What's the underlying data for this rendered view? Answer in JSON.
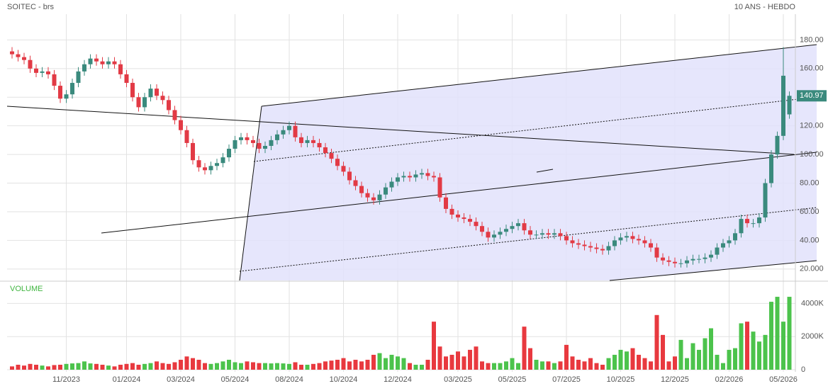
{
  "chart_data": [
    {
      "type": "candlestick",
      "title": "SOITEC - brs",
      "subtitle": "10 ANS - HEBDO",
      "up_color": "#3a8a7d",
      "down_color": "#e23a45",
      "ylim": [
        12,
        198
      ],
      "yticks": [
        {
          "value": 20,
          "label": "20.000"
        },
        {
          "value": 40,
          "label": "40.00"
        },
        {
          "value": 60,
          "label": "60.00"
        },
        {
          "value": 80,
          "label": "80.00"
        },
        {
          "value": 100,
          "label": "100.00"
        },
        {
          "value": 120,
          "label": "120.00"
        },
        {
          "value": 140,
          "label": "140.00"
        },
        {
          "value": 160,
          "label": "160.00"
        },
        {
          "value": 180,
          "label": "180.00"
        }
      ],
      "open": [
        172,
        170,
        168,
        166,
        160,
        157,
        158,
        156,
        148,
        139,
        142,
        150,
        158,
        163,
        167,
        165,
        163,
        165,
        163,
        156,
        150,
        140,
        133,
        140,
        146,
        141,
        138,
        131,
        124,
        117,
        108,
        96,
        91,
        89,
        92,
        94,
        98,
        104,
        110,
        112,
        110,
        108,
        104,
        106,
        110,
        114,
        117,
        120,
        112,
        108,
        110,
        108,
        105,
        101,
        97,
        92,
        88,
        82,
        78,
        73,
        70,
        68,
        72,
        77,
        81,
        84,
        85,
        84,
        86,
        87,
        85,
        84,
        70,
        62,
        58,
        56,
        55,
        53,
        50,
        46,
        42,
        44,
        46,
        48,
        50,
        52,
        47,
        44,
        44,
        45,
        44,
        45,
        43,
        40,
        38,
        37,
        36,
        35,
        34,
        33,
        36,
        40,
        42,
        43,
        41,
        40,
        38,
        35,
        28,
        26,
        25,
        24,
        24,
        26,
        27,
        27,
        28,
        30,
        35,
        38,
        40,
        45,
        55,
        52,
        52,
        56,
        80,
        100,
        113,
        128
      ],
      "high": [
        175,
        173,
        171,
        169,
        163,
        161,
        161,
        159,
        151,
        145,
        153,
        161,
        166,
        170,
        170,
        168,
        168,
        168,
        166,
        159,
        153,
        143,
        143,
        149,
        149,
        144,
        141,
        134,
        127,
        120,
        111,
        99,
        94,
        95,
        97,
        101,
        107,
        113,
        115,
        115,
        113,
        111,
        109,
        113,
        117,
        120,
        123,
        123,
        115,
        113,
        113,
        111,
        108,
        104,
        100,
        95,
        91,
        85,
        81,
        76,
        73,
        75,
        80,
        84,
        87,
        88,
        88,
        89,
        90,
        90,
        88,
        87,
        73,
        65,
        61,
        59,
        58,
        56,
        53,
        49,
        47,
        49,
        51,
        53,
        55,
        55,
        50,
        47,
        48,
        48,
        48,
        48,
        46,
        43,
        41,
        40,
        39,
        38,
        37,
        39,
        43,
        45,
        46,
        46,
        44,
        43,
        41,
        38,
        31,
        29,
        28,
        27,
        29,
        30,
        30,
        31,
        33,
        38,
        41,
        43,
        48,
        58,
        58,
        55,
        59,
        83,
        103,
        116,
        175,
        144
      ],
      "low": [
        167,
        165,
        163,
        157,
        154,
        154,
        153,
        145,
        136,
        136,
        139,
        147,
        155,
        160,
        162,
        160,
        160,
        160,
        153,
        147,
        137,
        130,
        130,
        137,
        138,
        135,
        128,
        121,
        114,
        105,
        93,
        88,
        86,
        86,
        89,
        91,
        95,
        101,
        107,
        107,
        105,
        101,
        101,
        103,
        107,
        111,
        114,
        109,
        105,
        105,
        105,
        102,
        98,
        94,
        89,
        85,
        79,
        75,
        70,
        67,
        65,
        65,
        69,
        74,
        78,
        81,
        81,
        81,
        83,
        82,
        81,
        67,
        59,
        55,
        53,
        52,
        50,
        47,
        43,
        39,
        39,
        41,
        43,
        45,
        47,
        44,
        41,
        41,
        41,
        41,
        41,
        40,
        37,
        35,
        34,
        33,
        32,
        31,
        30,
        30,
        33,
        37,
        39,
        38,
        37,
        35,
        32,
        25,
        23,
        22,
        21,
        21,
        21,
        23,
        24,
        24,
        25,
        27,
        32,
        35,
        37,
        42,
        49,
        49,
        49,
        53,
        77,
        97,
        110,
        125
      ],
      "close": [
        170,
        168,
        166,
        160,
        157,
        158,
        156,
        148,
        139,
        142,
        150,
        158,
        163,
        167,
        165,
        163,
        165,
        163,
        156,
        150,
        140,
        133,
        140,
        146,
        141,
        138,
        131,
        124,
        117,
        108,
        96,
        91,
        89,
        92,
        94,
        98,
        104,
        110,
        112,
        110,
        108,
        104,
        106,
        110,
        114,
        117,
        120,
        112,
        108,
        110,
        108,
        105,
        101,
        97,
        92,
        88,
        82,
        78,
        73,
        70,
        68,
        72,
        77,
        81,
        84,
        85,
        84,
        86,
        87,
        85,
        84,
        70,
        62,
        58,
        56,
        55,
        53,
        50,
        46,
        42,
        44,
        46,
        48,
        50,
        52,
        47,
        44,
        44,
        45,
        44,
        45,
        43,
        40,
        38,
        37,
        36,
        35,
        34,
        33,
        36,
        40,
        42,
        43,
        41,
        40,
        38,
        35,
        28,
        26,
        25,
        24,
        24,
        26,
        27,
        27,
        28,
        30,
        35,
        38,
        40,
        45,
        55,
        52,
        52,
        56,
        80,
        100,
        113,
        155,
        140.97
      ]
    },
    {
      "type": "bar",
      "title": "VOLUME",
      "up_color": "#4cc34c",
      "down_color": "#e8393f",
      "ylim": [
        0,
        5300
      ],
      "yticks": [
        0,
        {
          "value": 2000,
          "label": "2000K"
        },
        {
          "value": 4000,
          "label": "4000K"
        }
      ],
      "categories": [
        null,
        null,
        null,
        null,
        null,
        null,
        null,
        null,
        null,
        "11/2023",
        null,
        null,
        null,
        null,
        null,
        null,
        null,
        null,
        null,
        "01/2024",
        null,
        null,
        null,
        null,
        null,
        null,
        null,
        null,
        "03/2024",
        null,
        null,
        null,
        null,
        null,
        null,
        null,
        null,
        "05/2024",
        null,
        null,
        null,
        null,
        null,
        null,
        null,
        null,
        "08/2024",
        null,
        null,
        null,
        null,
        null,
        null,
        null,
        null,
        "10/2024",
        null,
        null,
        null,
        null,
        null,
        null,
        null,
        null,
        "12/2024",
        null,
        null,
        null,
        null,
        null,
        null,
        null,
        null,
        null,
        "03/2025",
        null,
        null,
        null,
        null,
        null,
        null,
        null,
        null,
        "05/2025",
        null,
        null,
        null,
        null,
        null,
        null,
        null,
        null,
        "07/2025",
        null,
        null,
        null,
        null,
        null,
        null,
        null,
        null,
        "10/2025",
        null,
        null,
        null,
        null,
        null,
        null,
        null,
        null,
        "12/2025",
        null,
        null,
        null,
        null,
        null,
        null,
        null,
        null,
        "02/2026",
        null,
        null,
        null,
        null,
        null,
        null,
        null,
        null,
        "05/2026",
        null
      ],
      "values": [
        200,
        300,
        250,
        350,
        300,
        250,
        200,
        280,
        300,
        350,
        380,
        400,
        500,
        380,
        350,
        300,
        250,
        200,
        300,
        350,
        400,
        300,
        350,
        400,
        500,
        400,
        350,
        450,
        600,
        800,
        700,
        600,
        400,
        350,
        400,
        500,
        600,
        450,
        400,
        500,
        450,
        400,
        400,
        380,
        400,
        380,
        350,
        450,
        300,
        300,
        350,
        400,
        500,
        550,
        600,
        700,
        500,
        600,
        500,
        600,
        900,
        1000,
        700,
        900,
        800,
        700,
        400,
        300,
        300,
        600,
        2900,
        1400,
        800,
        900,
        1100,
        800,
        1200,
        1400,
        500,
        400,
        400,
        400,
        500,
        700,
        400,
        2600,
        1300,
        600,
        500,
        500,
        400,
        500,
        1500,
        800,
        600,
        500,
        700,
        400,
        300,
        700,
        900,
        1200,
        1100,
        1300,
        900,
        700,
        500,
        3300,
        2100,
        500,
        800,
        1800,
        700,
        1600,
        1200,
        1900,
        2500,
        900,
        400,
        1200,
        1300,
        2800,
        2900,
        2300,
        1700,
        2100,
        4100,
        4400,
        2900,
        4400
      ]
    }
  ]
}
